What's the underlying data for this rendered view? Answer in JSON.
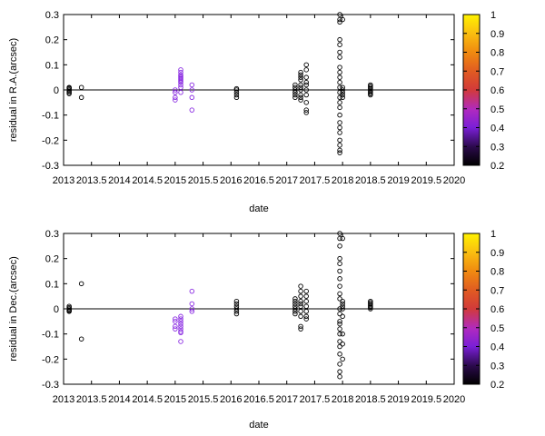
{
  "chart_data": [
    {
      "type": "scatter",
      "xlabel": "date",
      "ylabel": "residual in R.A.(arcsec)",
      "xlim": [
        2013,
        2020
      ],
      "ylim": [
        -0.3,
        0.3
      ],
      "x_ticks": [
        "2013",
        "2013.5",
        "2014",
        "2014.5",
        "2015",
        "2015.5",
        "2016",
        "2016.5",
        "2017",
        "2017.5",
        "2018",
        "2018.5",
        "2019",
        "2019.5",
        "2020"
      ],
      "y_ticks": [
        "-0.3",
        "-0.2",
        "-0.1",
        "0",
        "0.1",
        "0.2",
        "0.3"
      ],
      "colorbar": {
        "range": [
          0.2,
          1
        ],
        "ticks": [
          "1",
          "0.9",
          "0.8",
          "0.7",
          "0.6",
          "0.5",
          "0.4",
          "0.3",
          "0.2"
        ]
      },
      "zero_line": true,
      "points": [
        [
          2013.1,
          0.0,
          0.25
        ],
        [
          2013.1,
          0.01,
          0.25
        ],
        [
          2013.1,
          -0.01,
          0.25
        ],
        [
          2013.1,
          0.005,
          0.25
        ],
        [
          2013.1,
          -0.005,
          0.25
        ],
        [
          2013.1,
          -0.015,
          0.25
        ],
        [
          2013.1,
          0.0,
          0.25
        ],
        [
          2013.1,
          0.008,
          0.25
        ],
        [
          2013.32,
          0.01,
          0.25
        ],
        [
          2013.32,
          -0.03,
          0.25
        ],
        [
          2015.0,
          -0.01,
          0.45
        ],
        [
          2015.0,
          0.0,
          0.45
        ],
        [
          2015.0,
          -0.04,
          0.45
        ],
        [
          2015.0,
          -0.03,
          0.45
        ],
        [
          2015.1,
          0.07,
          0.45
        ],
        [
          2015.1,
          0.06,
          0.45
        ],
        [
          2015.1,
          0.05,
          0.45
        ],
        [
          2015.1,
          0.04,
          0.45
        ],
        [
          2015.1,
          0.03,
          0.45
        ],
        [
          2015.1,
          0.02,
          0.45
        ],
        [
          2015.1,
          0.01,
          0.45
        ],
        [
          2015.1,
          -0.01,
          0.45
        ],
        [
          2015.1,
          0.045,
          0.45
        ],
        [
          2015.1,
          0.055,
          0.45
        ],
        [
          2015.1,
          0.035,
          0.45
        ],
        [
          2015.1,
          0.08,
          0.45
        ],
        [
          2015.3,
          0.02,
          0.45
        ],
        [
          2015.3,
          0.0,
          0.45
        ],
        [
          2015.3,
          -0.03,
          0.45
        ],
        [
          2015.3,
          -0.08,
          0.45
        ],
        [
          2016.1,
          0.0,
          0.25
        ],
        [
          2016.1,
          -0.01,
          0.25
        ],
        [
          2016.1,
          -0.02,
          0.25
        ],
        [
          2016.1,
          -0.03,
          0.25
        ],
        [
          2016.1,
          0.005,
          0.25
        ],
        [
          2017.15,
          0.0,
          0.25
        ],
        [
          2017.15,
          -0.01,
          0.25
        ],
        [
          2017.15,
          0.01,
          0.25
        ],
        [
          2017.15,
          -0.02,
          0.25
        ],
        [
          2017.15,
          0.02,
          0.25
        ],
        [
          2017.15,
          -0.03,
          0.25
        ],
        [
          2017.25,
          0.0,
          0.25
        ],
        [
          2017.25,
          0.02,
          0.25
        ],
        [
          2017.25,
          0.04,
          0.25
        ],
        [
          2017.25,
          0.06,
          0.25
        ],
        [
          2017.25,
          0.07,
          0.25
        ],
        [
          2017.25,
          -0.02,
          0.25
        ],
        [
          2017.25,
          -0.03,
          0.25
        ],
        [
          2017.25,
          -0.04,
          0.25
        ],
        [
          2017.25,
          0.01,
          0.25
        ],
        [
          2017.25,
          0.05,
          0.25
        ],
        [
          2017.35,
          0.1,
          0.25
        ],
        [
          2017.35,
          0.08,
          0.25
        ],
        [
          2017.35,
          0.05,
          0.25
        ],
        [
          2017.35,
          0.03,
          0.25
        ],
        [
          2017.35,
          0.0,
          0.25
        ],
        [
          2017.35,
          -0.02,
          0.25
        ],
        [
          2017.35,
          -0.05,
          0.25
        ],
        [
          2017.35,
          -0.08,
          0.25
        ],
        [
          2017.35,
          -0.09,
          0.25
        ],
        [
          2017.35,
          0.02,
          0.25
        ],
        [
          2017.95,
          0.3,
          0.25
        ],
        [
          2017.95,
          0.28,
          0.25
        ],
        [
          2017.95,
          0.27,
          0.25
        ],
        [
          2017.95,
          0.2,
          0.25
        ],
        [
          2017.95,
          0.18,
          0.25
        ],
        [
          2017.95,
          0.15,
          0.25
        ],
        [
          2017.95,
          0.13,
          0.25
        ],
        [
          2017.95,
          0.09,
          0.25
        ],
        [
          2017.95,
          0.07,
          0.25
        ],
        [
          2017.95,
          0.05,
          0.25
        ],
        [
          2017.95,
          0.03,
          0.25
        ],
        [
          2017.95,
          0.01,
          0.25
        ],
        [
          2017.95,
          -0.01,
          0.25
        ],
        [
          2017.95,
          -0.03,
          0.25
        ],
        [
          2017.95,
          -0.05,
          0.25
        ],
        [
          2017.95,
          -0.07,
          0.25
        ],
        [
          2017.95,
          -0.1,
          0.25
        ],
        [
          2017.95,
          -0.13,
          0.25
        ],
        [
          2017.95,
          -0.15,
          0.25
        ],
        [
          2017.95,
          -0.17,
          0.25
        ],
        [
          2017.95,
          -0.2,
          0.25
        ],
        [
          2017.95,
          -0.22,
          0.25
        ],
        [
          2017.95,
          -0.24,
          0.25
        ],
        [
          2017.95,
          -0.25,
          0.25
        ],
        [
          2018.0,
          0.28,
          0.25
        ],
        [
          2018.0,
          0.0,
          0.25
        ],
        [
          2018.0,
          -0.01,
          0.25
        ],
        [
          2018.0,
          -0.02,
          0.25
        ],
        [
          2018.0,
          -0.03,
          0.25
        ],
        [
          2018.0,
          0.01,
          0.25
        ],
        [
          2018.5,
          0.0,
          0.25
        ],
        [
          2018.5,
          0.01,
          0.25
        ],
        [
          2018.5,
          -0.01,
          0.25
        ],
        [
          2018.5,
          0.005,
          0.25
        ],
        [
          2018.5,
          -0.005,
          0.25
        ],
        [
          2018.5,
          0.02,
          0.25
        ],
        [
          2018.5,
          -0.02,
          0.25
        ],
        [
          2018.5,
          0.015,
          0.25
        ],
        [
          2018.5,
          -0.015,
          0.25
        ]
      ]
    },
    {
      "type": "scatter",
      "xlabel": "date",
      "ylabel": "residual in Dec.(arcsec)",
      "xlim": [
        2013,
        2020
      ],
      "ylim": [
        -0.3,
        0.3
      ],
      "x_ticks": [
        "2013",
        "2013.5",
        "2014",
        "2014.5",
        "2015",
        "2015.5",
        "2016",
        "2016.5",
        "2017",
        "2017.5",
        "2018",
        "2018.5",
        "2019",
        "2019.5",
        "2020"
      ],
      "y_ticks": [
        "-0.3",
        "-0.2",
        "-0.1",
        "0",
        "0.1",
        "0.2",
        "0.3"
      ],
      "colorbar": {
        "range": [
          0.2,
          1
        ],
        "ticks": [
          "1",
          "0.9",
          "0.8",
          "0.7",
          "0.6",
          "0.5",
          "0.4",
          "0.3",
          "0.2"
        ]
      },
      "zero_line": true,
      "points": [
        [
          2013.1,
          0.0,
          0.25
        ],
        [
          2013.1,
          0.01,
          0.25
        ],
        [
          2013.1,
          -0.01,
          0.25
        ],
        [
          2013.1,
          0.005,
          0.25
        ],
        [
          2013.1,
          -0.005,
          0.25
        ],
        [
          2013.1,
          0.0,
          0.25
        ],
        [
          2013.1,
          -0.008,
          0.25
        ],
        [
          2013.32,
          0.1,
          0.25
        ],
        [
          2013.32,
          -0.12,
          0.25
        ],
        [
          2015.0,
          -0.04,
          0.45
        ],
        [
          2015.0,
          -0.05,
          0.45
        ],
        [
          2015.0,
          -0.07,
          0.45
        ],
        [
          2015.0,
          -0.08,
          0.45
        ],
        [
          2015.1,
          -0.04,
          0.45
        ],
        [
          2015.1,
          -0.05,
          0.45
        ],
        [
          2015.1,
          -0.06,
          0.45
        ],
        [
          2015.1,
          -0.08,
          0.45
        ],
        [
          2015.1,
          -0.09,
          0.45
        ],
        [
          2015.1,
          -0.13,
          0.45
        ],
        [
          2015.1,
          -0.03,
          0.45
        ],
        [
          2015.1,
          -0.095,
          0.45
        ],
        [
          2015.1,
          -0.07,
          0.45
        ],
        [
          2015.3,
          0.07,
          0.45
        ],
        [
          2015.3,
          0.02,
          0.45
        ],
        [
          2015.3,
          0.0,
          0.45
        ],
        [
          2015.3,
          -0.01,
          0.45
        ],
        [
          2016.1,
          0.03,
          0.25
        ],
        [
          2016.1,
          0.02,
          0.25
        ],
        [
          2016.1,
          0.01,
          0.25
        ],
        [
          2016.1,
          0.0,
          0.25
        ],
        [
          2016.1,
          -0.01,
          0.25
        ],
        [
          2016.1,
          -0.02,
          0.25
        ],
        [
          2017.15,
          0.04,
          0.25
        ],
        [
          2017.15,
          0.03,
          0.25
        ],
        [
          2017.15,
          0.02,
          0.25
        ],
        [
          2017.15,
          0.0,
          0.25
        ],
        [
          2017.15,
          -0.01,
          0.25
        ],
        [
          2017.15,
          -0.02,
          0.25
        ],
        [
          2017.15,
          0.01,
          0.25
        ],
        [
          2017.25,
          0.09,
          0.25
        ],
        [
          2017.25,
          0.07,
          0.25
        ],
        [
          2017.25,
          0.05,
          0.25
        ],
        [
          2017.25,
          0.03,
          0.25
        ],
        [
          2017.25,
          0.01,
          0.25
        ],
        [
          2017.25,
          -0.01,
          0.25
        ],
        [
          2017.25,
          -0.03,
          0.25
        ],
        [
          2017.25,
          -0.07,
          0.25
        ],
        [
          2017.25,
          -0.08,
          0.25
        ],
        [
          2017.25,
          0.02,
          0.25
        ],
        [
          2017.35,
          0.05,
          0.25
        ],
        [
          2017.35,
          0.03,
          0.25
        ],
        [
          2017.35,
          0.01,
          0.25
        ],
        [
          2017.35,
          -0.01,
          0.25
        ],
        [
          2017.35,
          -0.03,
          0.25
        ],
        [
          2017.35,
          -0.04,
          0.25
        ],
        [
          2017.35,
          0.07,
          0.25
        ],
        [
          2017.95,
          0.3,
          0.25
        ],
        [
          2017.95,
          0.28,
          0.25
        ],
        [
          2017.95,
          0.25,
          0.25
        ],
        [
          2017.95,
          0.2,
          0.25
        ],
        [
          2017.95,
          0.18,
          0.25
        ],
        [
          2017.95,
          0.15,
          0.25
        ],
        [
          2017.95,
          0.12,
          0.25
        ],
        [
          2017.95,
          0.09,
          0.25
        ],
        [
          2017.95,
          0.06,
          0.25
        ],
        [
          2017.95,
          0.04,
          0.25
        ],
        [
          2017.95,
          0.0,
          0.25
        ],
        [
          2017.95,
          -0.02,
          0.25
        ],
        [
          2017.95,
          -0.05,
          0.25
        ],
        [
          2017.95,
          -0.08,
          0.25
        ],
        [
          2017.95,
          -0.1,
          0.25
        ],
        [
          2017.95,
          -0.13,
          0.25
        ],
        [
          2017.95,
          -0.15,
          0.25
        ],
        [
          2017.95,
          -0.18,
          0.25
        ],
        [
          2017.95,
          -0.22,
          0.25
        ],
        [
          2017.95,
          -0.25,
          0.25
        ],
        [
          2017.95,
          -0.27,
          0.25
        ],
        [
          2017.95,
          -0.06,
          0.25
        ],
        [
          2018.0,
          0.03,
          0.25
        ],
        [
          2018.0,
          0.02,
          0.25
        ],
        [
          2018.0,
          0.01,
          0.25
        ],
        [
          2018.0,
          0.0,
          0.25
        ],
        [
          2018.0,
          -0.03,
          0.25
        ],
        [
          2018.0,
          -0.1,
          0.25
        ],
        [
          2018.0,
          -0.14,
          0.25
        ],
        [
          2018.0,
          -0.2,
          0.25
        ],
        [
          2018.0,
          0.28,
          0.25
        ],
        [
          2018.5,
          0.03,
          0.25
        ],
        [
          2018.5,
          0.02,
          0.25
        ],
        [
          2018.5,
          0.01,
          0.25
        ],
        [
          2018.5,
          0.0,
          0.25
        ],
        [
          2018.5,
          0.025,
          0.25
        ],
        [
          2018.5,
          0.015,
          0.25
        ],
        [
          2018.5,
          0.005,
          0.25
        ]
      ]
    }
  ]
}
